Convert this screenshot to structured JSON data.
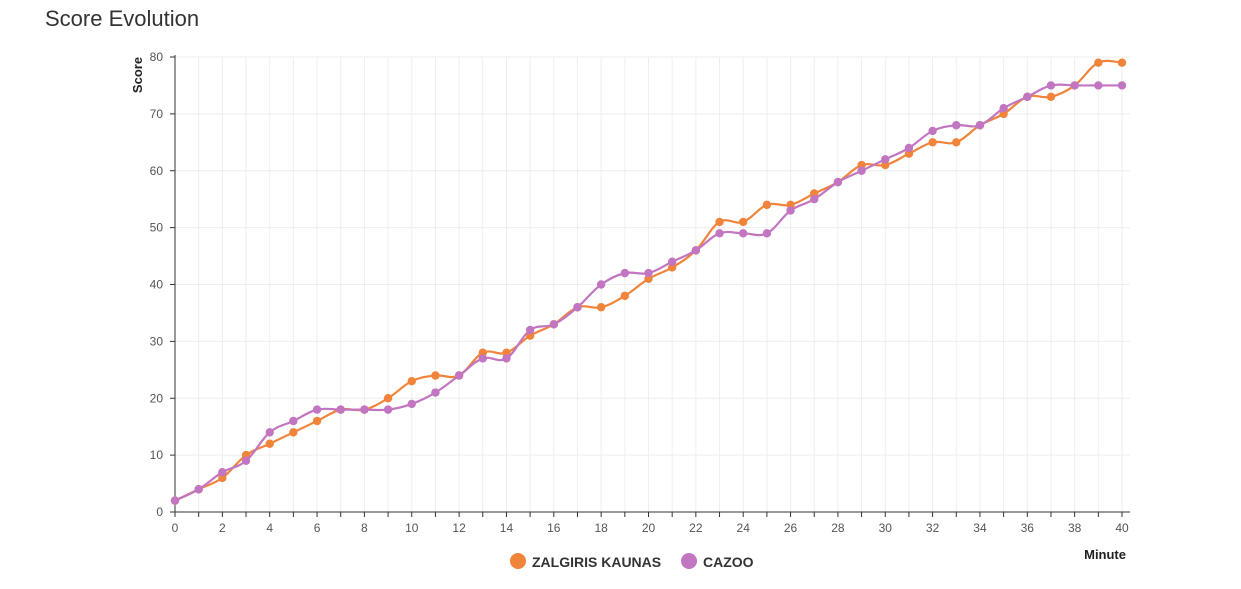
{
  "header": {
    "title": "Score Evolution"
  },
  "chart_data": {
    "type": "line",
    "title": "Score Evolution",
    "xlabel": "Minute",
    "ylabel": "Score",
    "xlim": [
      0,
      40
    ],
    "ylim": [
      0,
      80
    ],
    "grid": true,
    "legend_position": "bottom-center",
    "x_ticks": [
      0,
      2,
      4,
      6,
      8,
      10,
      12,
      14,
      16,
      18,
      20,
      22,
      24,
      26,
      28,
      30,
      32,
      34,
      36,
      38,
      40
    ],
    "y_ticks": [
      0,
      10,
      20,
      30,
      40,
      50,
      60,
      70,
      80
    ],
    "x": [
      0,
      1,
      2,
      3,
      4,
      5,
      6,
      7,
      8,
      9,
      10,
      11,
      12,
      13,
      14,
      15,
      16,
      17,
      18,
      19,
      20,
      21,
      22,
      23,
      24,
      25,
      26,
      27,
      28,
      29,
      30,
      31,
      32,
      33,
      34,
      35,
      36,
      37,
      38,
      39,
      40
    ],
    "series": [
      {
        "name": "ZALGIRIS KAUNAS",
        "color": "#f0843a",
        "values": [
          2,
          4,
          6,
          10,
          12,
          14,
          16,
          18,
          18,
          20,
          23,
          24,
          24,
          28,
          28,
          31,
          33,
          36,
          36,
          38,
          41,
          43,
          46,
          51,
          51,
          54,
          54,
          56,
          58,
          61,
          61,
          63,
          65,
          65,
          68,
          70,
          73,
          73,
          75,
          79,
          79
        ]
      },
      {
        "name": "CAZOO",
        "color": "#c275c1",
        "values": [
          2,
          4,
          7,
          9,
          14,
          16,
          18,
          18,
          18,
          18,
          19,
          21,
          24,
          27,
          27,
          32,
          33,
          36,
          40,
          42,
          42,
          44,
          46,
          49,
          49,
          49,
          53,
          55,
          58,
          60,
          62,
          64,
          67,
          68,
          68,
          71,
          73,
          75,
          75,
          75,
          75
        ]
      }
    ]
  }
}
